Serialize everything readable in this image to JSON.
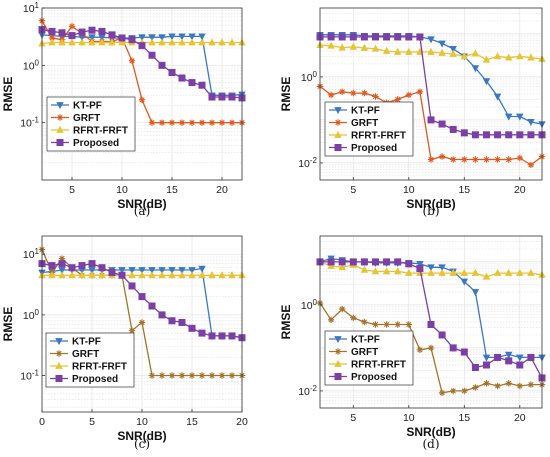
{
  "figure": {
    "legend_labels": [
      "KT-PF",
      "GRFT",
      "RFRT-FRFT",
      "Proposed"
    ],
    "colors": {
      "KT-PF": "#3a78c3",
      "GRFT-a": "#e0591f",
      "GRFT-c": "#a4732a",
      "RFRT-FRFT": "#e6c433",
      "Proposed": "#7b3fa6"
    }
  },
  "chart_data": [
    {
      "type": "line",
      "caption": "(a)",
      "xlabel": "SNR(dB)",
      "ylabel": "RMSE",
      "yscale": "log",
      "xlim": [
        2,
        22
      ],
      "ylim": [
        0.01,
        10
      ],
      "xticks": [
        5,
        10,
        15,
        20
      ],
      "xtick_labels": [
        "5",
        "10",
        "15",
        "20"
      ],
      "yticks": [
        0.1,
        1,
        10
      ],
      "ytick_labels": [
        "10^-1",
        "10^0",
        "10^1"
      ],
      "grid": true,
      "legend_position": "lower-left",
      "x": [
        2,
        3,
        4,
        5,
        6,
        7,
        8,
        9,
        10,
        11,
        12,
        13,
        14,
        15,
        16,
        17,
        18,
        19,
        20,
        21,
        22
      ],
      "series": [
        {
          "name": "KT-PF",
          "color": "#3a78c3",
          "marker": "triangle-down",
          "values": [
            3.4,
            3.3,
            3.2,
            3.2,
            3.1,
            3.1,
            3.1,
            3.0,
            3.0,
            3.0,
            3.1,
            3.1,
            3.1,
            3.2,
            3.2,
            3.2,
            3.2,
            0.3,
            0.3,
            0.3,
            0.31
          ]
        },
        {
          "name": "GRFT",
          "color": "#e0591f",
          "marker": "star",
          "values": [
            6.0,
            3.0,
            2.8,
            4.8,
            3.6,
            2.6,
            2.6,
            2.6,
            3.0,
            1.2,
            0.25,
            0.1,
            0.1,
            0.1,
            0.1,
            0.1,
            0.1,
            0.1,
            0.1,
            0.1,
            0.1
          ]
        },
        {
          "name": "RFRT-FRFT",
          "color": "#e6c433",
          "marker": "triangle-up",
          "values": [
            2.4,
            2.5,
            2.5,
            2.5,
            2.5,
            2.5,
            2.5,
            2.5,
            2.5,
            2.5,
            2.5,
            2.5,
            2.5,
            2.5,
            2.5,
            2.5,
            2.5,
            2.5,
            2.5,
            2.5,
            2.5
          ]
        },
        {
          "name": "Proposed",
          "color": "#7b3fa6",
          "marker": "square",
          "values": [
            4.2,
            3.9,
            3.7,
            3.3,
            3.8,
            4.1,
            3.9,
            3.4,
            3.0,
            2.8,
            2.2,
            1.5,
            1.0,
            0.75,
            0.6,
            0.5,
            0.45,
            0.28,
            0.28,
            0.28,
            0.27
          ]
        }
      ]
    },
    {
      "type": "line",
      "caption": "(b)",
      "xlabel": "SNR(dB)",
      "ylabel": "RMSE",
      "yscale": "log",
      "xlim": [
        2,
        22
      ],
      "ylim": [
        0.004,
        40
      ],
      "xticks": [
        5,
        10,
        15,
        20
      ],
      "xtick_labels": [
        "5",
        "10",
        "15",
        "20"
      ],
      "yticks": [
        0.01,
        1
      ],
      "ytick_labels": [
        "10^-2",
        "10^0"
      ],
      "grid": true,
      "legend_position": "lower-left",
      "x": [
        2,
        3,
        4,
        5,
        6,
        7,
        8,
        9,
        10,
        11,
        12,
        13,
        14,
        15,
        16,
        17,
        18,
        19,
        20,
        21,
        22
      ],
      "series": [
        {
          "name": "KT-PF",
          "color": "#3a78c3",
          "marker": "triangle-down",
          "values": [
            9.5,
            9.5,
            9.5,
            9.5,
            9.0,
            9.0,
            9.0,
            9.0,
            9.0,
            8.5,
            7.5,
            6.0,
            4.5,
            3.0,
            1.6,
            0.8,
            0.35,
            0.12,
            0.12,
            0.09,
            0.08
          ]
        },
        {
          "name": "GRFT",
          "color": "#e0591f",
          "marker": "star",
          "values": [
            0.6,
            0.38,
            0.45,
            0.42,
            0.42,
            0.35,
            0.25,
            0.3,
            0.38,
            0.45,
            0.012,
            0.014,
            0.012,
            0.012,
            0.012,
            0.012,
            0.012,
            0.012,
            0.013,
            0.009,
            0.014
          ]
        },
        {
          "name": "RFRT-FRFT",
          "color": "#e6c433",
          "marker": "triangle-up",
          "values": [
            5.5,
            5.3,
            4.8,
            5.0,
            4.7,
            4.5,
            4.0,
            3.8,
            3.8,
            3.8,
            3.8,
            3.6,
            3.4,
            3.0,
            3.5,
            2.5,
            3.0,
            2.8,
            3.0,
            2.8,
            2.6
          ]
        },
        {
          "name": "Proposed",
          "color": "#7b3fa6",
          "marker": "square",
          "values": [
            8.5,
            8.5,
            8.5,
            8.5,
            8.5,
            8.5,
            8.5,
            8.5,
            8.5,
            8.5,
            0.1,
            0.08,
            0.06,
            0.05,
            0.045,
            0.045,
            0.045,
            0.045,
            0.045,
            0.045,
            0.045
          ]
        }
      ]
    },
    {
      "type": "line",
      "caption": "(c)",
      "xlabel": "SNR(dB)",
      "ylabel": "RMSE",
      "yscale": "log",
      "xlim": [
        0,
        20
      ],
      "ylim": [
        0.025,
        20
      ],
      "xticks": [
        0,
        5,
        10,
        15,
        20
      ],
      "xtick_labels": [
        "0",
        "5",
        "10",
        "15",
        "20"
      ],
      "yticks": [
        0.1,
        1,
        10
      ],
      "ytick_labels": [
        "10^-1",
        "10^0",
        "10^1"
      ],
      "grid": true,
      "legend_position": "lower-left",
      "x": [
        0,
        1,
        2,
        3,
        4,
        5,
        6,
        7,
        8,
        9,
        10,
        11,
        12,
        13,
        14,
        15,
        16,
        17,
        18,
        19,
        20
      ],
      "series": [
        {
          "name": "KT-PF",
          "color": "#3a78c3",
          "marker": "triangle-down",
          "values": [
            5.0,
            5.2,
            5.5,
            5.5,
            5.5,
            5.5,
            5.5,
            5.5,
            5.5,
            5.5,
            5.5,
            5.5,
            5.5,
            5.5,
            5.5,
            5.5,
            5.8,
            0.45,
            0.45,
            0.45,
            0.42
          ]
        },
        {
          "name": "GRFT",
          "color": "#a4732a",
          "marker": "star",
          "values": [
            12.0,
            5.0,
            8.5,
            6.0,
            4.5,
            4.5,
            4.5,
            4.5,
            4.5,
            0.55,
            0.75,
            0.1,
            0.1,
            0.1,
            0.1,
            0.1,
            0.1,
            0.1,
            0.1,
            0.1,
            0.1
          ]
        },
        {
          "name": "RFRT-FRFT",
          "color": "#e6c433",
          "marker": "triangle-up",
          "values": [
            4.5,
            4.5,
            4.5,
            4.5,
            4.5,
            4.5,
            4.5,
            4.5,
            4.5,
            4.5,
            4.5,
            4.5,
            4.5,
            4.5,
            4.5,
            4.5,
            4.5,
            4.5,
            4.5,
            4.5,
            4.5
          ]
        },
        {
          "name": "Proposed",
          "color": "#7b3fa6",
          "marker": "square",
          "values": [
            7.0,
            6.5,
            7.0,
            6.0,
            6.5,
            7.0,
            6.0,
            5.0,
            4.5,
            3.0,
            2.0,
            1.4,
            1.0,
            0.8,
            0.75,
            0.6,
            0.5,
            0.45,
            0.45,
            0.45,
            0.42
          ]
        }
      ]
    },
    {
      "type": "line",
      "caption": "(d)",
      "xlabel": "SNR(dB)",
      "ylabel": "RMSE",
      "yscale": "log",
      "xlim": [
        2,
        22
      ],
      "ylim": [
        0.004,
        40
      ],
      "xticks": [
        5,
        10,
        15,
        20
      ],
      "xtick_labels": [
        "5",
        "10",
        "15",
        "20"
      ],
      "yticks": [
        0.01,
        1
      ],
      "ytick_labels": [
        "10^-2",
        "10^0"
      ],
      "grid": true,
      "legend_position": "lower-left",
      "x": [
        2,
        3,
        4,
        5,
        6,
        7,
        8,
        9,
        10,
        11,
        12,
        13,
        14,
        15,
        16,
        17,
        18,
        19,
        20,
        21,
        22
      ],
      "series": [
        {
          "name": "KT-PF",
          "color": "#3a78c3",
          "marker": "triangle-down",
          "values": [
            10.0,
            12.0,
            11.0,
            10.0,
            10.0,
            9.5,
            9.5,
            9.5,
            9.5,
            9.0,
            7.5,
            7.5,
            6.0,
            3.5,
            2.0,
            0.06,
            0.06,
            0.07,
            0.06,
            0.06,
            0.06
          ]
        },
        {
          "name": "GRFT",
          "color": "#a4732a",
          "marker": "star",
          "values": [
            1.1,
            0.45,
            0.8,
            0.5,
            0.4,
            0.35,
            0.35,
            0.35,
            0.35,
            0.09,
            0.1,
            0.009,
            0.01,
            0.01,
            0.012,
            0.015,
            0.013,
            0.015,
            0.013,
            0.014,
            0.014
          ]
        },
        {
          "name": "RFRT-FRFT",
          "color": "#e6c433",
          "marker": "triangle-up",
          "values": [
            10.0,
            8.0,
            7.5,
            8.5,
            6.5,
            6.0,
            6.0,
            6.0,
            5.5,
            5.5,
            5.5,
            5.5,
            5.5,
            5.5,
            5.5,
            4.5,
            5.5,
            5.5,
            5.5,
            5.5,
            5.0
          ]
        },
        {
          "name": "Proposed",
          "color": "#7b3fa6",
          "marker": "square",
          "values": [
            10.0,
            10.0,
            10.0,
            10.0,
            10.0,
            10.0,
            10.0,
            10.0,
            9.0,
            7.0,
            0.35,
            0.2,
            0.1,
            0.08,
            0.035,
            0.04,
            0.06,
            0.05,
            0.04,
            0.06,
            0.02
          ]
        }
      ]
    }
  ]
}
